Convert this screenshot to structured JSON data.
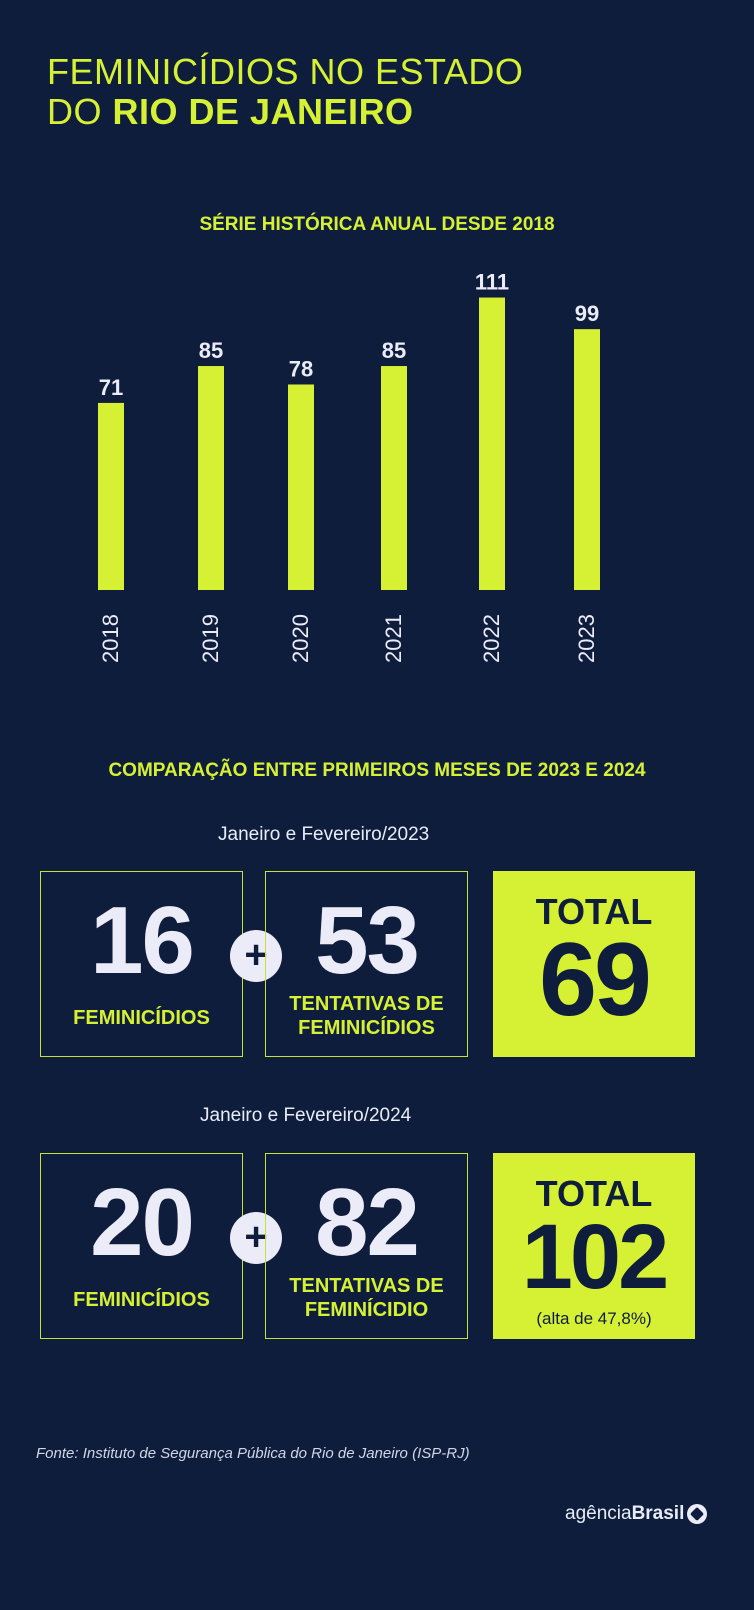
{
  "header": {
    "line1": "FEMINICÍDIOS NO ESTADO",
    "line2_prefix": "DO",
    "line2_bold": "RIO DE JANEIRO"
  },
  "chart_title": "SÉRIE HISTÓRICA ANUAL DESDE 2018",
  "chart_data": {
    "type": "bar",
    "title": "SÉRIE HISTÓRICA ANUAL DESDE 2018",
    "categories": [
      "2018",
      "2019",
      "2020",
      "2021",
      "2022",
      "2023"
    ],
    "values": [
      71,
      85,
      78,
      85,
      111,
      99
    ],
    "ylim": [
      0,
      115
    ],
    "grid": false,
    "bar_color": "#d6f033",
    "label_color": "#ecebf8"
  },
  "comparison": {
    "title": "COMPARAÇÃO ENTRE PRIMEIROS MESES DE 2023 E 2024",
    "rows": [
      {
        "period": "Janeiro e Fevereiro/2023",
        "femicides_value": "16",
        "femicides_label": "FEMINICÍDIOS",
        "plus": "+",
        "attempts_value": "53",
        "attempts_label_1": "TENTATIVAS DE",
        "attempts_label_2": "FEMINICÍDIOS",
        "total_label": "TOTAL",
        "total_value": "69",
        "total_note": ""
      },
      {
        "period": "Janeiro e Fevereiro/2024",
        "femicides_value": "20",
        "femicides_label": "FEMINICÍDIOS",
        "plus": "+",
        "attempts_value": "82",
        "attempts_label_1": "TENTATIVAS DE",
        "attempts_label_2": "FEMINÍCIDIO",
        "total_label": "TOTAL",
        "total_value": "102",
        "total_note": "(alta de 47,8%)"
      }
    ]
  },
  "source": "Fonte: Instituto de Segurança Pública do Rio de Janeiro (ISP-RJ)",
  "brand": {
    "prefix": "agência",
    "bold": "Brasil",
    "icon": "agencia-brasil-logo-icon"
  },
  "colors": {
    "background": "#0f1d3d",
    "accent": "#d6f033",
    "text": "#ecebf8"
  }
}
